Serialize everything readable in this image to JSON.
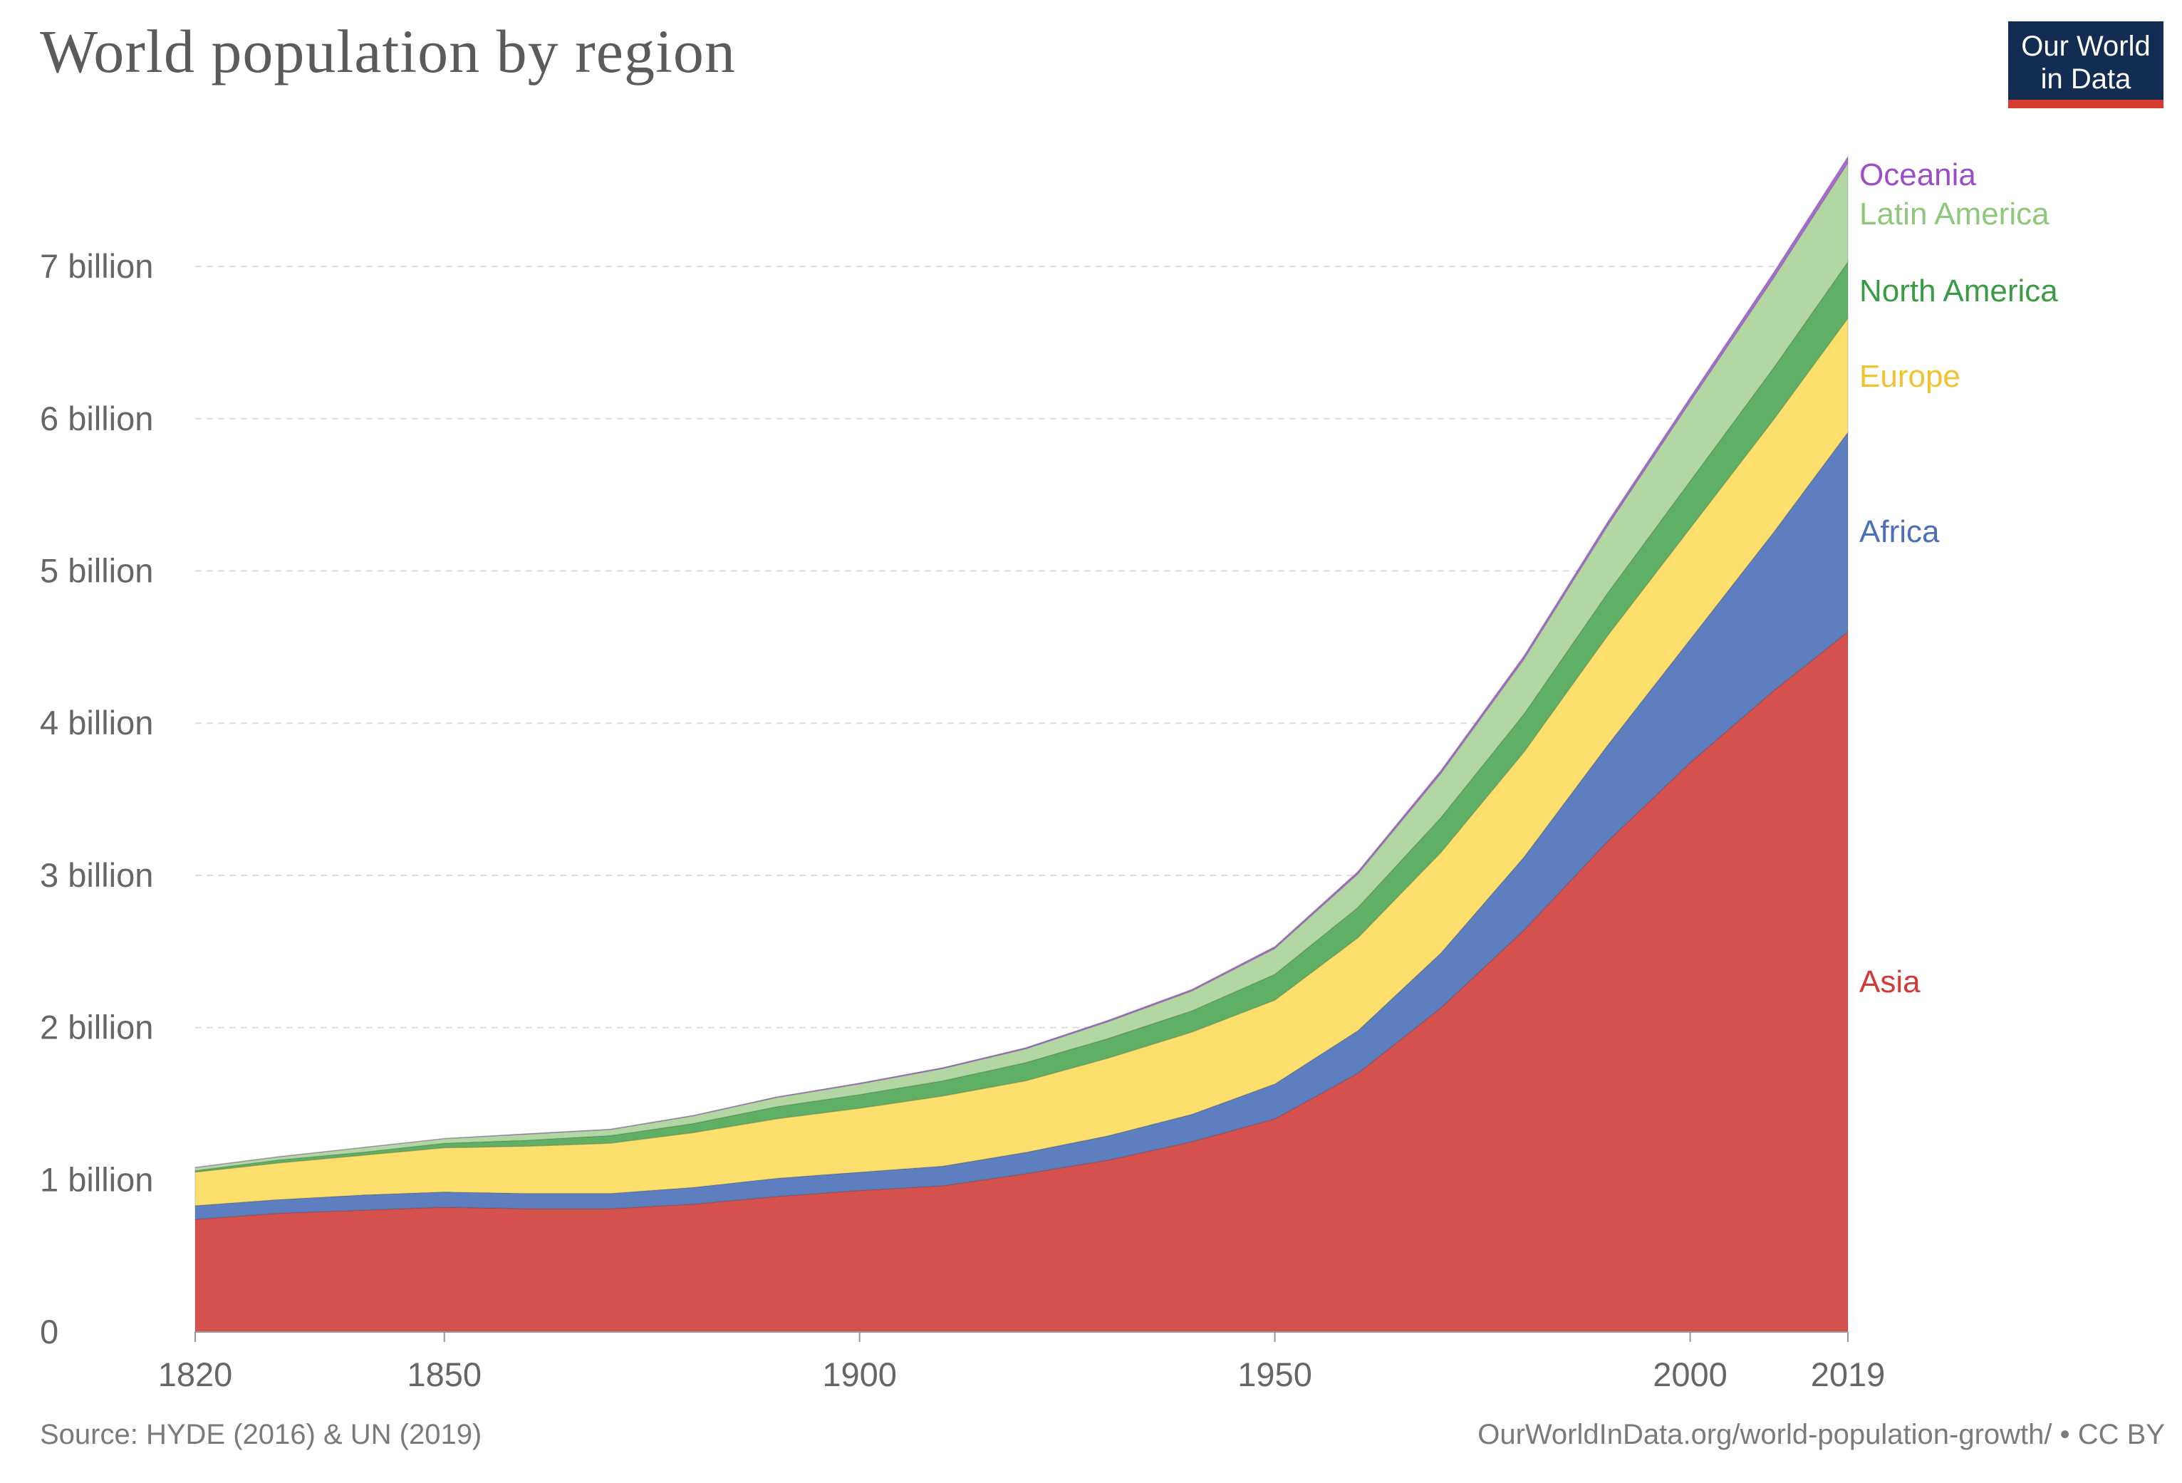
{
  "header": {
    "title": "World population by region",
    "logo_line1": "Our World",
    "logo_line2": "in Data"
  },
  "footer": {
    "source": "Source: HYDE (2016) & UN (2019)",
    "url": "OurWorldInData.org/world-population-growth/ • CC BY"
  },
  "chart_data": {
    "type": "area",
    "stacked": true,
    "title": "World population by region",
    "xlabel": "",
    "ylabel": "",
    "xlim": [
      1820,
      2019
    ],
    "ylim": [
      0,
      7.7
    ],
    "unit": "billion",
    "grid": "horizontal dashed",
    "legend": "inline labels at right end",
    "x_ticks": [
      1820,
      1850,
      1900,
      1950,
      2000,
      2019
    ],
    "y_ticks": [
      {
        "value": 0,
        "label": "0"
      },
      {
        "value": 1,
        "label": "1 billion"
      },
      {
        "value": 2,
        "label": "2 billion"
      },
      {
        "value": 3,
        "label": "3 billion"
      },
      {
        "value": 4,
        "label": "4 billion"
      },
      {
        "value": 5,
        "label": "5 billion"
      },
      {
        "value": 6,
        "label": "6 billion"
      },
      {
        "value": 7,
        "label": "7 billion"
      }
    ],
    "x": [
      1820,
      1830,
      1840,
      1850,
      1860,
      1870,
      1880,
      1890,
      1900,
      1910,
      1920,
      1930,
      1940,
      1950,
      1960,
      1970,
      1980,
      1990,
      2000,
      2010,
      2019
    ],
    "series": [
      {
        "name": "Asia",
        "color": "#d5524f",
        "values": [
          0.74,
          0.78,
          0.8,
          0.82,
          0.81,
          0.81,
          0.84,
          0.89,
          0.93,
          0.96,
          1.04,
          1.13,
          1.25,
          1.4,
          1.7,
          2.13,
          2.64,
          3.22,
          3.74,
          4.21,
          4.6
        ]
      },
      {
        "name": "Africa",
        "color": "#5d7ebf",
        "values": [
          0.09,
          0.09,
          0.1,
          0.1,
          0.1,
          0.1,
          0.11,
          0.12,
          0.12,
          0.13,
          0.14,
          0.16,
          0.18,
          0.23,
          0.28,
          0.36,
          0.48,
          0.63,
          0.81,
          1.04,
          1.31
        ]
      },
      {
        "name": "Europe",
        "color": "#fddf6e",
        "values": [
          0.22,
          0.24,
          0.26,
          0.29,
          0.31,
          0.33,
          0.36,
          0.39,
          0.42,
          0.46,
          0.47,
          0.51,
          0.54,
          0.55,
          0.61,
          0.66,
          0.69,
          0.72,
          0.73,
          0.74,
          0.75
        ]
      },
      {
        "name": "North America",
        "color": "#5fb064",
        "values": [
          0.01,
          0.02,
          0.02,
          0.03,
          0.04,
          0.05,
          0.06,
          0.08,
          0.09,
          0.1,
          0.12,
          0.13,
          0.14,
          0.17,
          0.2,
          0.23,
          0.25,
          0.28,
          0.31,
          0.34,
          0.37
        ]
      },
      {
        "name": "Latin America",
        "color": "#b3d7a2",
        "values": [
          0.02,
          0.02,
          0.03,
          0.03,
          0.04,
          0.04,
          0.05,
          0.06,
          0.07,
          0.08,
          0.09,
          0.11,
          0.13,
          0.17,
          0.22,
          0.29,
          0.36,
          0.44,
          0.52,
          0.59,
          0.65
        ]
      },
      {
        "name": "Oceania",
        "color": "#a86ad1",
        "values": [
          0.002,
          0.002,
          0.002,
          0.002,
          0.003,
          0.003,
          0.004,
          0.005,
          0.006,
          0.007,
          0.008,
          0.01,
          0.011,
          0.013,
          0.016,
          0.02,
          0.023,
          0.027,
          0.031,
          0.037,
          0.042
        ]
      }
    ],
    "label_colors": {
      "Asia": "#d13a36",
      "Africa": "#4b6fb8",
      "Europe": "#f2c230",
      "North America": "#3a9b44",
      "Latin America": "#8fc77b",
      "Oceania": "#9b4fc7"
    }
  }
}
